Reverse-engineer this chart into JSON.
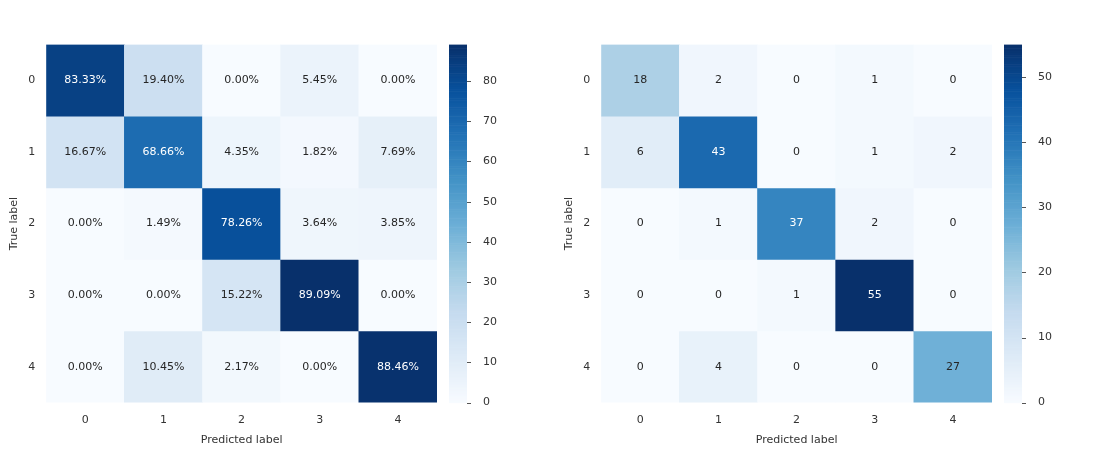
{
  "chart_data": [
    {
      "type": "heatmap",
      "categories": [
        "0",
        "1",
        "2",
        "3",
        "4"
      ],
      "y_categories": [
        "0",
        "1",
        "2",
        "3",
        "4"
      ],
      "xlabel": "Predicted label",
      "ylabel": "True label",
      "cells": [
        [
          83.33,
          19.4,
          0.0,
          5.45,
          0.0
        ],
        [
          16.67,
          68.66,
          4.35,
          1.82,
          7.69
        ],
        [
          0.0,
          1.49,
          78.26,
          3.64,
          3.85
        ],
        [
          0.0,
          0.0,
          15.22,
          89.09,
          0.0
        ],
        [
          0.0,
          10.45,
          2.17,
          0.0,
          88.46
        ]
      ],
      "cell_labels": [
        [
          "83.33%",
          "19.40%",
          "0.00%",
          "5.45%",
          "0.00%"
        ],
        [
          "16.67%",
          "68.66%",
          "4.35%",
          "1.82%",
          "7.69%"
        ],
        [
          "0.00%",
          "1.49%",
          "78.26%",
          "3.64%",
          "3.85%"
        ],
        [
          "0.00%",
          "0.00%",
          "15.22%",
          "89.09%",
          "0.00%"
        ],
        [
          "0.00%",
          "10.45%",
          "2.17%",
          "0.00%",
          "88.46%"
        ]
      ],
      "clim": [
        0,
        89.09
      ],
      "cticks": [
        0,
        10,
        20,
        30,
        40,
        50,
        60,
        70,
        80
      ]
    },
    {
      "type": "heatmap",
      "categories": [
        "0",
        "1",
        "2",
        "3",
        "4"
      ],
      "y_categories": [
        "0",
        "1",
        "2",
        "3",
        "4"
      ],
      "xlabel": "Predicted label",
      "ylabel": "True label",
      "cells": [
        [
          18,
          2,
          0,
          1,
          0
        ],
        [
          6,
          43,
          0,
          1,
          2
        ],
        [
          0,
          1,
          37,
          2,
          0
        ],
        [
          0,
          0,
          1,
          55,
          0
        ],
        [
          0,
          4,
          0,
          0,
          27
        ]
      ],
      "data_labels": true,
      "clim": [
        0,
        55
      ],
      "cticks": [
        0,
        10,
        20,
        30,
        40,
        50
      ]
    }
  ]
}
